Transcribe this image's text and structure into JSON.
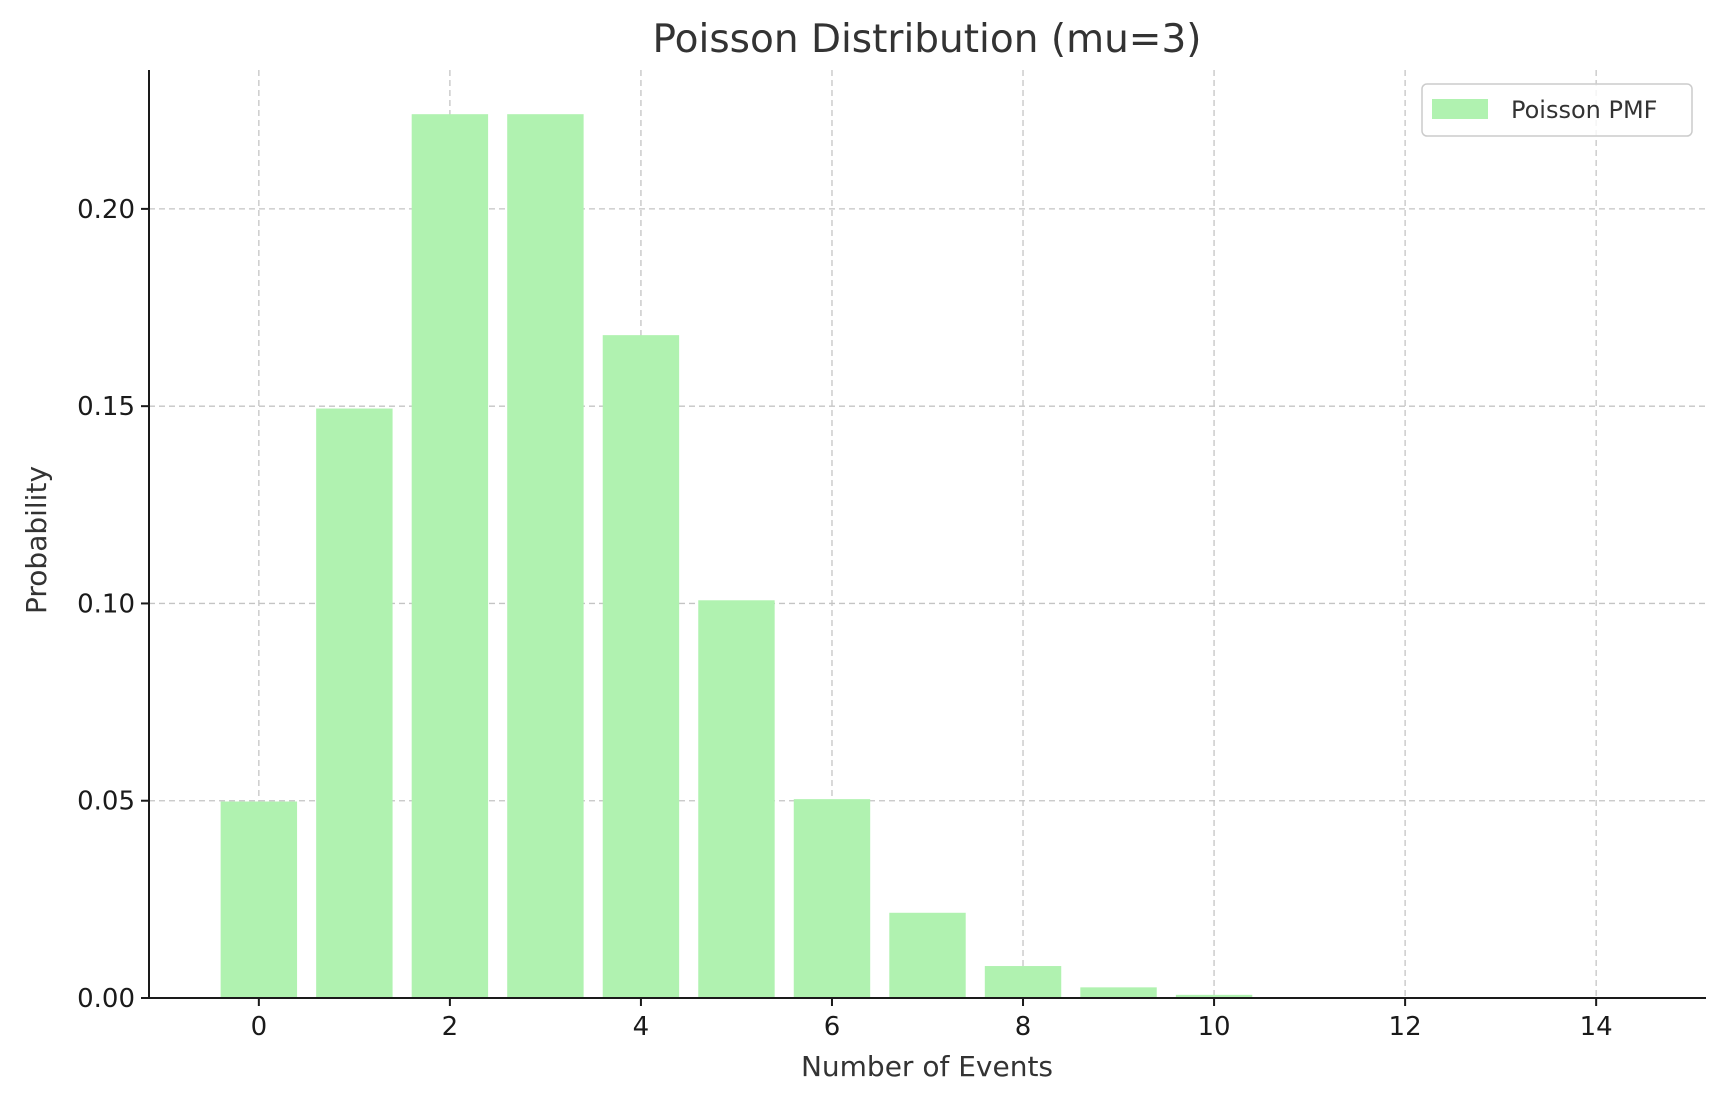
{
  "chart_data": {
    "type": "bar",
    "title": "Poisson Distribution (mu=3)",
    "xlabel": "Number of Events",
    "ylabel": "Probability",
    "categories": [
      0,
      1,
      2,
      3,
      4,
      5,
      6,
      7,
      8,
      9,
      10,
      11,
      12,
      13,
      14
    ],
    "series": [
      {
        "name": "Poisson PMF",
        "color": "#b0f2b0",
        "values": [
          0.0498,
          0.1494,
          0.224,
          0.224,
          0.168,
          0.1008,
          0.0504,
          0.0216,
          0.0081,
          0.0027,
          0.0008,
          0.0002,
          0.0001,
          0.0,
          0.0
        ]
      }
    ],
    "xlim": [
      -1.15,
      15.15
    ],
    "ylim": [
      0,
      0.2352
    ],
    "xticks": [
      0,
      2,
      4,
      6,
      8,
      10,
      12,
      14
    ],
    "yticks": [
      0.0,
      0.05,
      0.1,
      0.15,
      0.2
    ],
    "ytick_labels": [
      "0.00",
      "0.05",
      "0.10",
      "0.15",
      "0.20"
    ],
    "grid": true,
    "legend_position": "top-right"
  }
}
